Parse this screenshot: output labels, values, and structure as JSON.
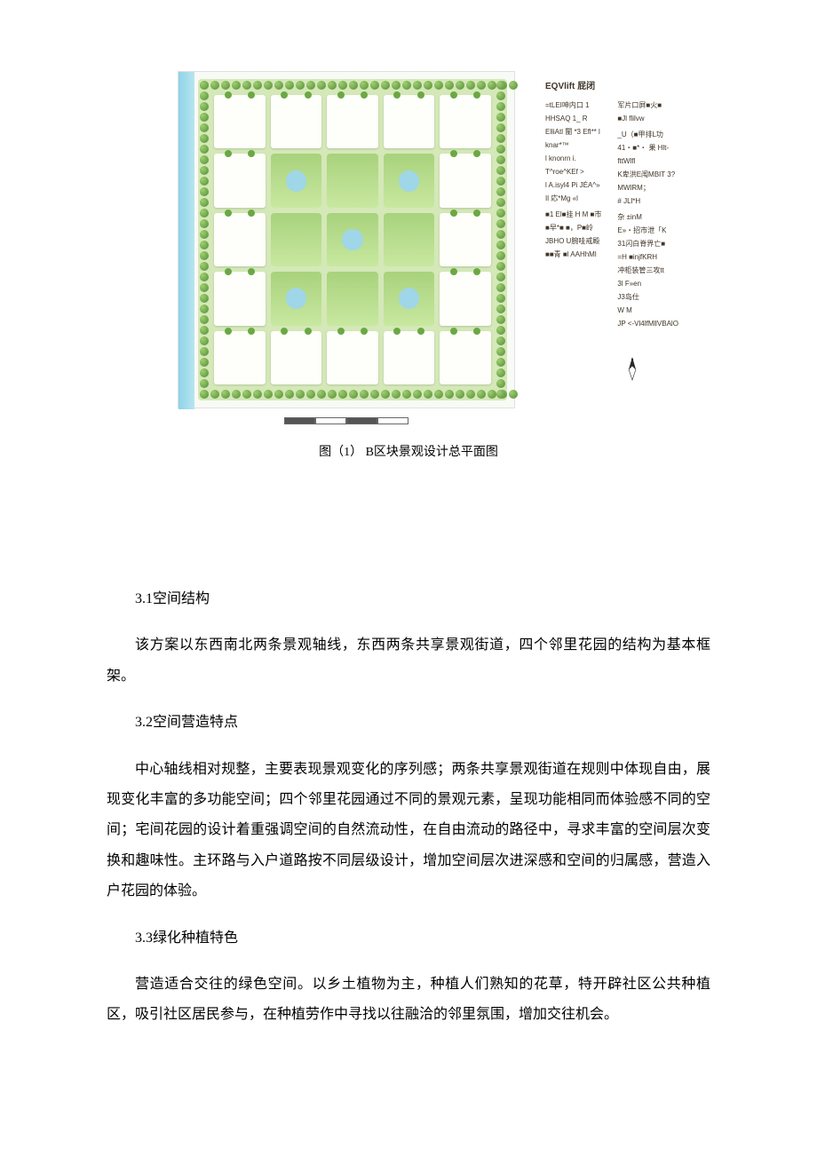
{
  "figure": {
    "caption": "图（1） B区块景观设计总平面图",
    "plan_colors": {
      "river": "#8fd4e8",
      "green_base": "#d4e8b8",
      "building": "#fefefa",
      "tree": "#568b3a",
      "water_feature": "#9fd6e8",
      "background": "#f8faf5"
    }
  },
  "legend": {
    "title": "EQVlift 屁闭",
    "col1": [
      "=tLEI呻内口  1",
      "HHSAQ 1_ R",
      "ElliAtl 闉 *3 Efl** l",
      "knar*™",
      "l    knonrn i.",
      "T^roe^KEf >",
      "l A.isyl4 Pi JÉA^»",
      "Il    応*Mg «l",
      "",
      "■1 El■挂  H M ■市",
      "■早*■ ■，P■岭",
      "JBHO U腕哇戒殿",
      "■■青 ■l AAHhMl"
    ],
    "col2": [
      "军片口屛■火■",
      "■Jl flilvw",
      "",
      "_U（■甲排L功",
      "41・■*・ 果 Hlt-",
      "fttWlfl",
      "K卑洪E闱MBIT 3?",
      "MWlRM；",
      "# JLl*H",
      "",
      "杂 ±inM",
      "E»・招市泄「K",
      "31闪白脊界亡■",
      "=H ■injfKRH",
      "冲柜装管三攻tt",
      "3l F»en",
      "J3岛仕",
      "W                    M",
      "JP <-Vl4lfMllVBAlO"
    ]
  },
  "sections": {
    "s31": {
      "heading": "3.1空间结构",
      "para": "该方案以东西南北两条景观轴线，东西两条共享景观街道，四个邻里花园的结构为基本框架。"
    },
    "s32": {
      "heading": "3.2空间营造特点",
      "para": "中心轴线相对规整，主要表现景观变化的序列感；两条共享景观街道在规则中体现自由，展现变化丰富的多功能空间；四个邻里花园通过不同的景观元素，呈现功能相同而体验感不同的空间；宅间花园的设计着重强调空间的自然流动性，在自由流动的路径中，寻求丰富的空间层次变换和趣味性。主环路与入户道路按不同层级设计，增加空间层次进深感和空间的归属感，营造入户花园的体验。"
    },
    "s33": {
      "heading": "3.3绿化种植特色",
      "para": "营造适合交往的绿色空间。以乡土植物为主，种植人们熟知的花草，特开辟社区公共种植区，吸引社区居民参与，在种植劳作中寻找以往融洽的邻里氛围，增加交往机会。"
    }
  }
}
